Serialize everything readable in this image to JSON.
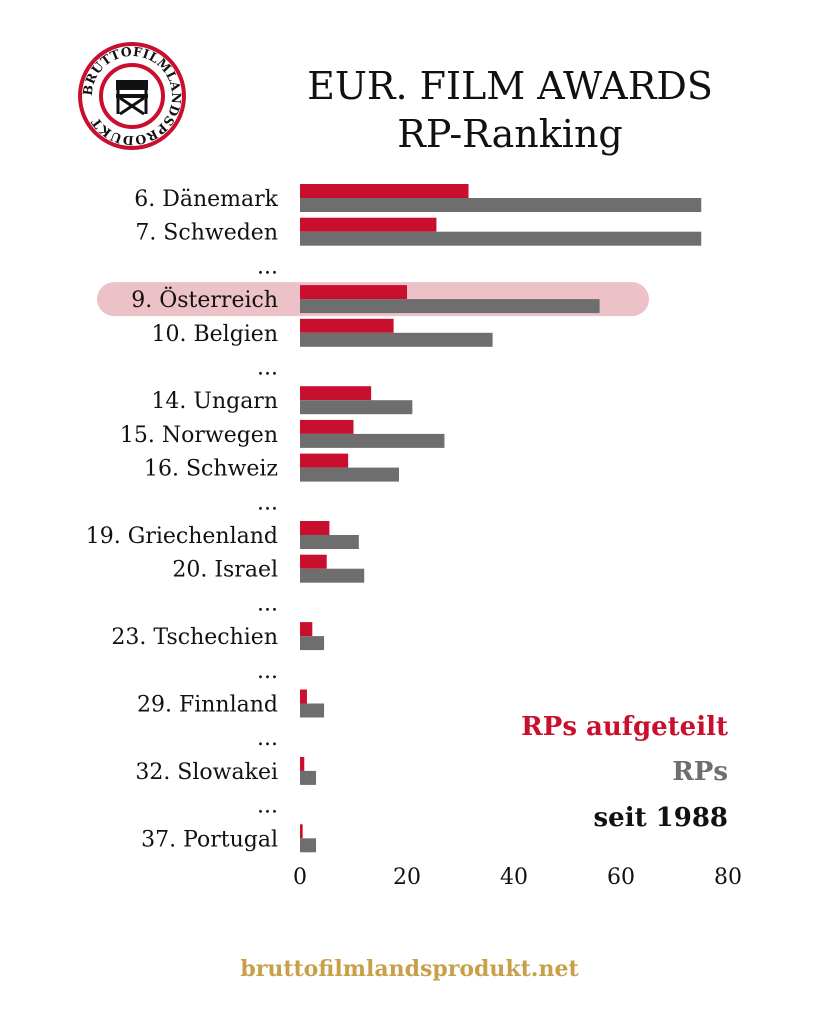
{
  "header": {
    "title_line1": "EUR. FILM AWARDS",
    "title_line2": "RP-Ranking",
    "logo_text": "BRUTTOFILMLANDSPRODUKT"
  },
  "chart_data": {
    "type": "bar",
    "orientation": "horizontal",
    "rows": [
      {
        "label": "6. Dänemark",
        "split": 31.5,
        "total": 75
      },
      {
        "label": "7. Schweden",
        "split": 25.5,
        "total": 75
      },
      {
        "label": "...",
        "gap": true
      },
      {
        "label": "9. Österreich",
        "split": 20,
        "total": 56,
        "highlight": true
      },
      {
        "label": "10. Belgien",
        "split": 17.5,
        "total": 36
      },
      {
        "label": "...",
        "gap": true
      },
      {
        "label": "14. Ungarn",
        "split": 13.3,
        "total": 21
      },
      {
        "label": "15. Norwegen",
        "split": 10,
        "total": 27
      },
      {
        "label": "16. Schweiz",
        "split": 9,
        "total": 18.5
      },
      {
        "label": "...",
        "gap": true
      },
      {
        "label": "19. Griechenland",
        "split": 5.5,
        "total": 11
      },
      {
        "label": "20. Israel",
        "split": 5,
        "total": 12
      },
      {
        "label": "...",
        "gap": true
      },
      {
        "label": "23. Tschechien",
        "split": 2.3,
        "total": 4.5
      },
      {
        "label": "...",
        "gap": true
      },
      {
        "label": "29. Finnland",
        "split": 1.3,
        "total": 4.5
      },
      {
        "label": "...",
        "gap": true
      },
      {
        "label": "32. Slowakei",
        "split": 0.8,
        "total": 3
      },
      {
        "label": "...",
        "gap": true
      },
      {
        "label": "37. Portugal",
        "split": 0.5,
        "total": 3
      }
    ],
    "series": [
      {
        "name": "RPs aufgeteilt",
        "key": "split"
      },
      {
        "name": "RPs",
        "key": "total"
      }
    ],
    "xlim": [
      0,
      80
    ],
    "xticks": [
      0,
      20,
      40,
      60,
      80
    ],
    "legend": {
      "line1": "RPs aufgeteilt",
      "line2": "RPs",
      "line3": "seit 1988",
      "placement": "bottom-right"
    }
  },
  "colors": {
    "split": "#c8102e",
    "total": "#6e6e6e",
    "highlight_band": "#ecc1c7",
    "legend_dark": "#111111",
    "footer": "#c8a04a"
  },
  "footer": {
    "url": "bruttofilmlandsprodukt.net"
  }
}
